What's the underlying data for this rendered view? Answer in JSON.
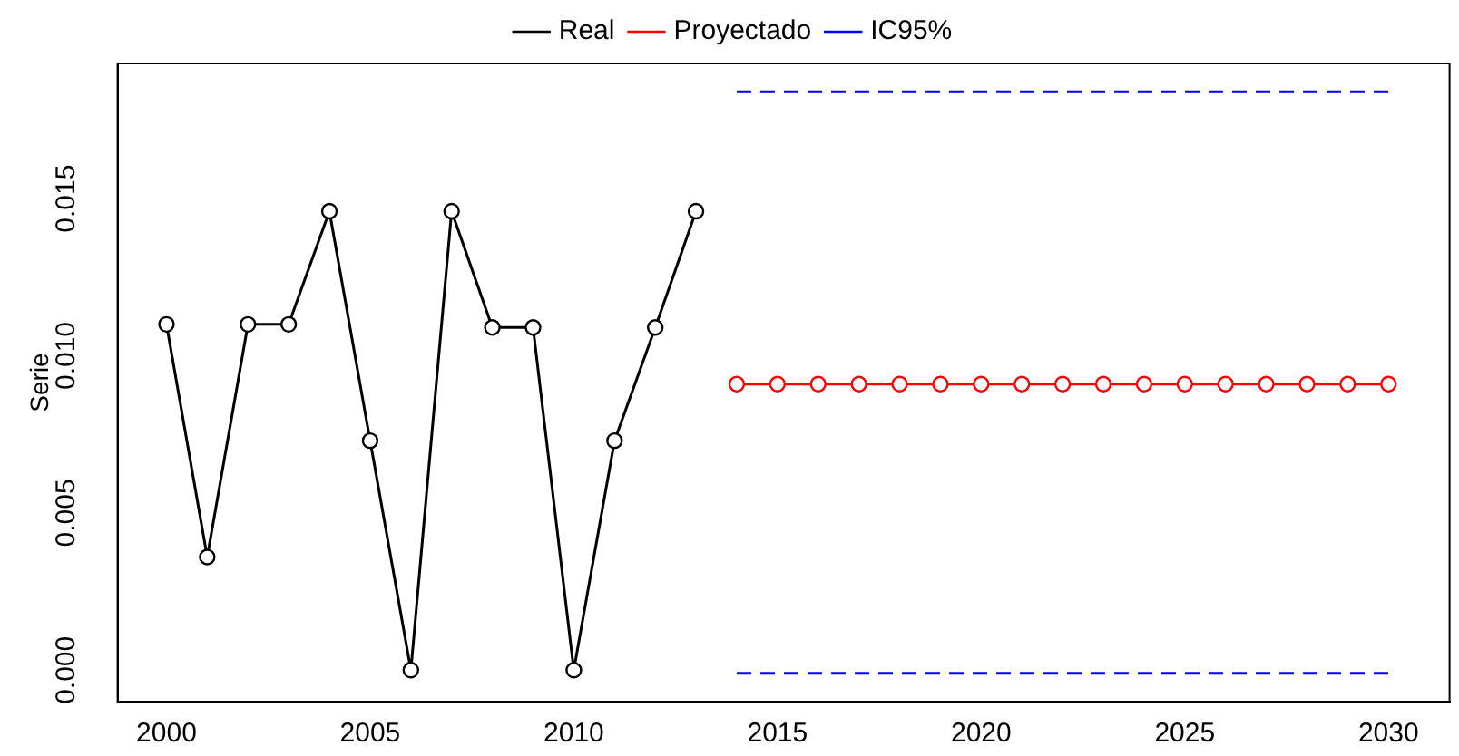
{
  "chart_data": {
    "type": "line",
    "ylabel": "Serie",
    "legend": "top",
    "grid": false,
    "xlim": [
      1998.8,
      2031.5
    ],
    "xticks": [
      2000,
      2005,
      2010,
      2015,
      2020,
      2025,
      2030
    ],
    "ylim": [
      -0.001,
      0.0193
    ],
    "yticks": [
      {
        "value": 0,
        "label": "0.000"
      },
      {
        "value": 0.005,
        "label": "0.005"
      },
      {
        "value": 0.01,
        "label": "0.010"
      },
      {
        "value": 0.015,
        "label": "0.015"
      }
    ],
    "series": [
      {
        "name": "Real",
        "color": "#000000",
        "marker": "circle",
        "line_style": "solid",
        "x": [
          2000,
          2001,
          2002,
          2003,
          2004,
          2005,
          2006,
          2007,
          2008,
          2009,
          2010,
          2011,
          2012,
          2013
        ],
        "values": [
          0.011,
          0.0036,
          0.011,
          0.011,
          0.0146,
          0.0073,
          0,
          0.0146,
          0.0109,
          0.0109,
          0,
          0.0073,
          0.0109,
          0.0146
        ]
      },
      {
        "name": "Proyectado",
        "color": "#ff0000",
        "marker": "circle",
        "line_style": "solid",
        "x": [
          2014,
          2015,
          2016,
          2017,
          2018,
          2019,
          2020,
          2021,
          2022,
          2023,
          2024,
          2025,
          2026,
          2027,
          2028,
          2029,
          2030
        ],
        "values": [
          0.0091,
          0.0091,
          0.0091,
          0.0091,
          0.0091,
          0.0091,
          0.0091,
          0.0091,
          0.0091,
          0.0091,
          0.0091,
          0.0091,
          0.0091,
          0.0091,
          0.0091,
          0.0091,
          0.0091
        ]
      },
      {
        "name": "IC95%",
        "color": "#0000ff",
        "marker": "none",
        "line_style": "dashed",
        "x": [
          2014,
          2030
        ],
        "values": [
          0.0184,
          0.0184
        ]
      },
      {
        "color": "#0000ff",
        "marker": "none",
        "line_style": "dashed",
        "x": [
          2014,
          2030
        ],
        "values": [
          -0.0001,
          -0.0001
        ]
      }
    ]
  }
}
